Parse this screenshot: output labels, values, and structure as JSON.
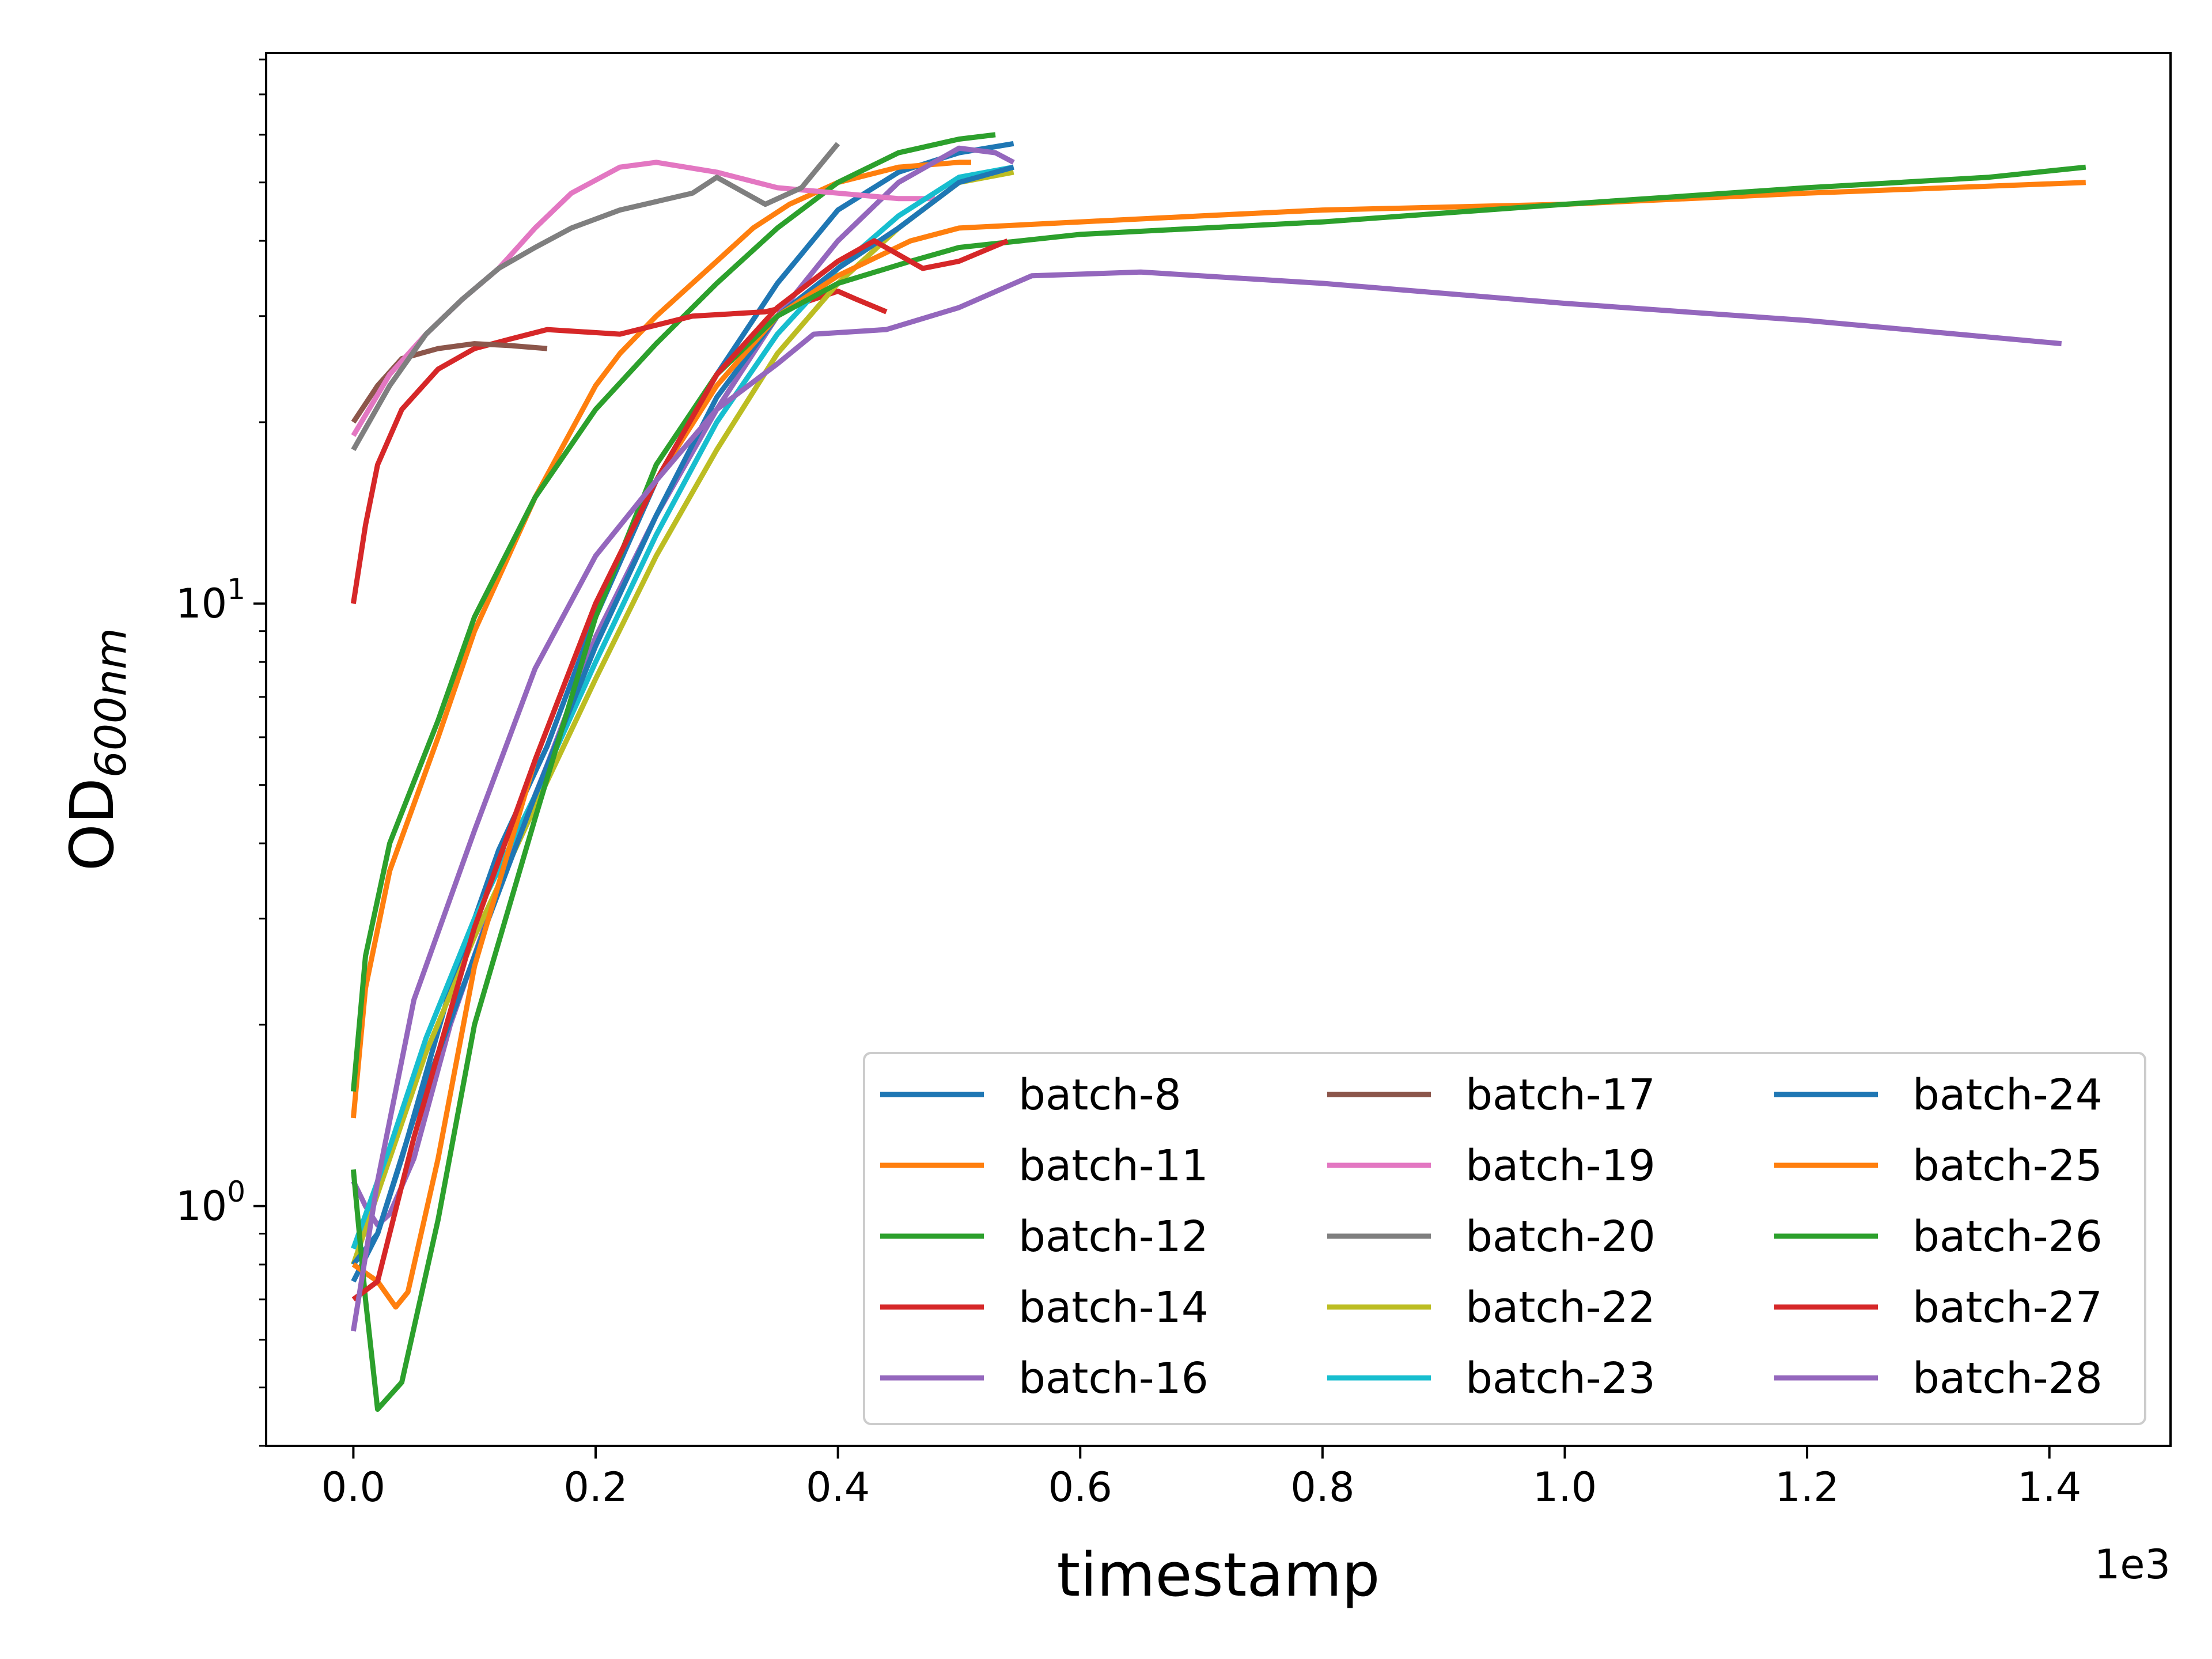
{
  "chart_data": {
    "type": "line",
    "title": "",
    "xlabel": "timestamp",
    "ylabel": "OD",
    "ylabel_sub": "600nm",
    "x_offset_text": "1e3",
    "x_scale": "linear",
    "y_scale": "log",
    "xlim": [
      -0.072,
      1.5
    ],
    "ylim": [
      0.4,
      82
    ],
    "x_ticks": [
      0.0,
      0.2,
      0.4,
      0.6,
      0.8,
      1.0,
      1.2,
      1.4
    ],
    "x_tick_labels": [
      "0.0",
      "0.2",
      "0.4",
      "0.6",
      "0.8",
      "1.0",
      "1.2",
      "1.4"
    ],
    "y_major_ticks": [
      1,
      10
    ],
    "y_tick_labels": [
      {
        "base": "10",
        "exp": "0"
      },
      {
        "base": "10",
        "exp": "1"
      }
    ],
    "grid": false,
    "legend": {
      "placement": "lower-right",
      "columns": 3
    },
    "series": [
      {
        "name": "batch-8",
        "color": "#1f77b4",
        "points": [
          [
            0,
            0.75
          ],
          [
            0.02,
            0.9
          ],
          [
            0.04,
            1.2
          ],
          [
            0.08,
            2.3
          ],
          [
            0.12,
            3.9
          ],
          [
            0.16,
            5.8
          ],
          [
            0.2,
            9.5
          ],
          [
            0.25,
            16
          ],
          [
            0.3,
            24
          ],
          [
            0.35,
            34
          ],
          [
            0.4,
            45
          ],
          [
            0.45,
            52
          ],
          [
            0.5,
            56
          ],
          [
            0.545,
            58
          ]
        ]
      },
      {
        "name": "batch-11",
        "color": "#ff7f0e",
        "points": [
          [
            0,
            1.4
          ],
          [
            0.01,
            2.3
          ],
          [
            0.03,
            3.6
          ],
          [
            0.07,
            6.0
          ],
          [
            0.1,
            9.0
          ],
          [
            0.15,
            15
          ],
          [
            0.2,
            23
          ],
          [
            0.22,
            26
          ],
          [
            0.25,
            30
          ],
          [
            0.3,
            37
          ],
          [
            0.33,
            42
          ],
          [
            0.36,
            46
          ],
          [
            0.4,
            50
          ],
          [
            0.45,
            53
          ],
          [
            0.5,
            54
          ],
          [
            0.51,
            54
          ]
        ]
      },
      {
        "name": "batch-12",
        "color": "#2ca02c",
        "points": [
          [
            0,
            1.55
          ],
          [
            0.01,
            2.6
          ],
          [
            0.03,
            4.0
          ],
          [
            0.07,
            6.4
          ],
          [
            0.1,
            9.5
          ],
          [
            0.15,
            15
          ],
          [
            0.2,
            21
          ],
          [
            0.25,
            27
          ],
          [
            0.3,
            34
          ],
          [
            0.35,
            42
          ],
          [
            0.4,
            50
          ],
          [
            0.45,
            56
          ],
          [
            0.5,
            59
          ],
          [
            0.53,
            60
          ]
        ]
      },
      {
        "name": "batch-14",
        "color": "#d62728",
        "points": [
          [
            0,
            10
          ],
          [
            0.01,
            13.5
          ],
          [
            0.02,
            17
          ],
          [
            0.04,
            21
          ],
          [
            0.07,
            24.5
          ],
          [
            0.1,
            26.5
          ],
          [
            0.13,
            27.5
          ],
          [
            0.16,
            28.5
          ],
          [
            0.22,
            28
          ],
          [
            0.28,
            30
          ],
          [
            0.34,
            30.5
          ],
          [
            0.37,
            31.5
          ],
          [
            0.4,
            33
          ],
          [
            0.415,
            32
          ],
          [
            0.44,
            30.5
          ]
        ]
      },
      {
        "name": "batch-16",
        "color": "#9467bd",
        "points": [
          [
            0,
            1.1
          ],
          [
            0.01,
            1.0
          ],
          [
            0.02,
            0.93
          ],
          [
            0.03,
            0.97
          ],
          [
            0.05,
            1.2
          ],
          [
            0.08,
            2.0
          ],
          [
            0.12,
            3.4
          ],
          [
            0.16,
            5.4
          ],
          [
            0.2,
            8.8
          ],
          [
            0.25,
            14
          ],
          [
            0.3,
            21
          ],
          [
            0.35,
            30
          ],
          [
            0.4,
            40
          ],
          [
            0.45,
            50
          ],
          [
            0.5,
            57
          ],
          [
            0.53,
            56
          ],
          [
            0.545,
            54
          ]
        ]
      },
      {
        "name": "batch-17",
        "color": "#8c564b",
        "points": [
          [
            0,
            20
          ],
          [
            0.02,
            23
          ],
          [
            0.04,
            25.5
          ],
          [
            0.07,
            26.5
          ],
          [
            0.1,
            27
          ],
          [
            0.13,
            26.8
          ],
          [
            0.16,
            26.5
          ]
        ]
      },
      {
        "name": "batch-19",
        "color": "#e377c2",
        "points": [
          [
            0,
            19
          ],
          [
            0.03,
            24
          ],
          [
            0.06,
            28
          ],
          [
            0.09,
            32
          ],
          [
            0.12,
            36
          ],
          [
            0.15,
            42
          ],
          [
            0.18,
            48
          ],
          [
            0.22,
            53
          ],
          [
            0.25,
            54
          ],
          [
            0.3,
            52
          ],
          [
            0.35,
            49
          ],
          [
            0.4,
            48
          ],
          [
            0.45,
            47
          ],
          [
            0.48,
            47
          ]
        ]
      },
      {
        "name": "batch-20",
        "color": "#7f7f7f",
        "points": [
          [
            0,
            18
          ],
          [
            0.03,
            23
          ],
          [
            0.06,
            28
          ],
          [
            0.09,
            32
          ],
          [
            0.12,
            36
          ],
          [
            0.15,
            39
          ],
          [
            0.18,
            42
          ],
          [
            0.22,
            45
          ],
          [
            0.28,
            48
          ],
          [
            0.3,
            51
          ],
          [
            0.34,
            46
          ],
          [
            0.37,
            49
          ],
          [
            0.4,
            58
          ]
        ]
      },
      {
        "name": "batch-22",
        "color": "#bcbd22",
        "points": [
          [
            0,
            0.8
          ],
          [
            0.03,
            1.2
          ],
          [
            0.06,
            1.8
          ],
          [
            0.1,
            2.8
          ],
          [
            0.15,
            4.6
          ],
          [
            0.2,
            7.5
          ],
          [
            0.25,
            12
          ],
          [
            0.3,
            18
          ],
          [
            0.35,
            26
          ],
          [
            0.4,
            34
          ],
          [
            0.45,
            42
          ],
          [
            0.5,
            50
          ],
          [
            0.545,
            52
          ]
        ]
      },
      {
        "name": "batch-23",
        "color": "#17becf",
        "points": [
          [
            0,
            0.85
          ],
          [
            0.03,
            1.25
          ],
          [
            0.06,
            1.9
          ],
          [
            0.1,
            3.0
          ],
          [
            0.15,
            4.8
          ],
          [
            0.2,
            8.0
          ],
          [
            0.25,
            13
          ],
          [
            0.3,
            20
          ],
          [
            0.35,
            28
          ],
          [
            0.4,
            36
          ],
          [
            0.45,
            44
          ],
          [
            0.5,
            51
          ],
          [
            0.545,
            53
          ]
        ]
      },
      {
        "name": "batch-24",
        "color": "#1f77b4",
        "points": [
          [
            0,
            0.8
          ],
          [
            0.02,
            0.9
          ],
          [
            0.05,
            1.4
          ],
          [
            0.1,
            2.6
          ],
          [
            0.15,
            4.8
          ],
          [
            0.2,
            8.5
          ],
          [
            0.25,
            14
          ],
          [
            0.3,
            22
          ],
          [
            0.35,
            30
          ],
          [
            0.4,
            36
          ],
          [
            0.45,
            42
          ],
          [
            0.5,
            50
          ],
          [
            0.545,
            53
          ]
        ]
      },
      {
        "name": "batch-25",
        "color": "#ff7f0e",
        "points": [
          [
            0,
            0.8
          ],
          [
            0.02,
            0.75
          ],
          [
            0.035,
            0.68
          ],
          [
            0.045,
            0.72
          ],
          [
            0.07,
            1.2
          ],
          [
            0.1,
            2.5
          ],
          [
            0.15,
            5.5
          ],
          [
            0.2,
            10
          ],
          [
            0.25,
            16
          ],
          [
            0.3,
            23
          ],
          [
            0.35,
            30
          ],
          [
            0.4,
            35
          ],
          [
            0.46,
            40
          ],
          [
            0.5,
            42
          ],
          [
            0.6,
            43
          ],
          [
            0.7,
            44
          ],
          [
            0.8,
            45
          ],
          [
            1.0,
            46
          ],
          [
            1.2,
            48
          ],
          [
            1.43,
            50
          ]
        ]
      },
      {
        "name": "batch-26",
        "color": "#2ca02c",
        "points": [
          [
            0,
            1.15
          ],
          [
            0.01,
            0.7
          ],
          [
            0.02,
            0.46
          ],
          [
            0.04,
            0.51
          ],
          [
            0.07,
            0.95
          ],
          [
            0.1,
            2.0
          ],
          [
            0.15,
            4.4
          ],
          [
            0.2,
            9.5
          ],
          [
            0.25,
            17
          ],
          [
            0.3,
            24
          ],
          [
            0.35,
            30
          ],
          [
            0.4,
            34
          ],
          [
            0.46,
            37
          ],
          [
            0.5,
            39
          ],
          [
            0.6,
            41
          ],
          [
            0.8,
            43
          ],
          [
            1.0,
            46
          ],
          [
            1.2,
            49
          ],
          [
            1.35,
            51
          ],
          [
            1.43,
            53
          ]
        ]
      },
      {
        "name": "batch-27",
        "color": "#d62728",
        "points": [
          [
            0,
            0.7
          ],
          [
            0.02,
            0.75
          ],
          [
            0.05,
            1.3
          ],
          [
            0.1,
            2.9
          ],
          [
            0.15,
            5.5
          ],
          [
            0.2,
            10
          ],
          [
            0.25,
            16
          ],
          [
            0.3,
            24
          ],
          [
            0.35,
            31
          ],
          [
            0.4,
            37
          ],
          [
            0.43,
            40
          ],
          [
            0.47,
            36
          ],
          [
            0.5,
            37
          ],
          [
            0.54,
            40
          ]
        ]
      },
      {
        "name": "batch-28",
        "color": "#9467bd",
        "points": [
          [
            0,
            0.62
          ],
          [
            0.02,
            1.1
          ],
          [
            0.05,
            2.2
          ],
          [
            0.1,
            4.2
          ],
          [
            0.15,
            7.8
          ],
          [
            0.2,
            12
          ],
          [
            0.25,
            16
          ],
          [
            0.3,
            21
          ],
          [
            0.35,
            25
          ],
          [
            0.38,
            28
          ],
          [
            0.44,
            28.5
          ],
          [
            0.5,
            31
          ],
          [
            0.56,
            35
          ],
          [
            0.65,
            35.5
          ],
          [
            0.8,
            34
          ],
          [
            1.0,
            31.5
          ],
          [
            1.2,
            29.5
          ],
          [
            1.41,
            27
          ]
        ]
      }
    ]
  }
}
